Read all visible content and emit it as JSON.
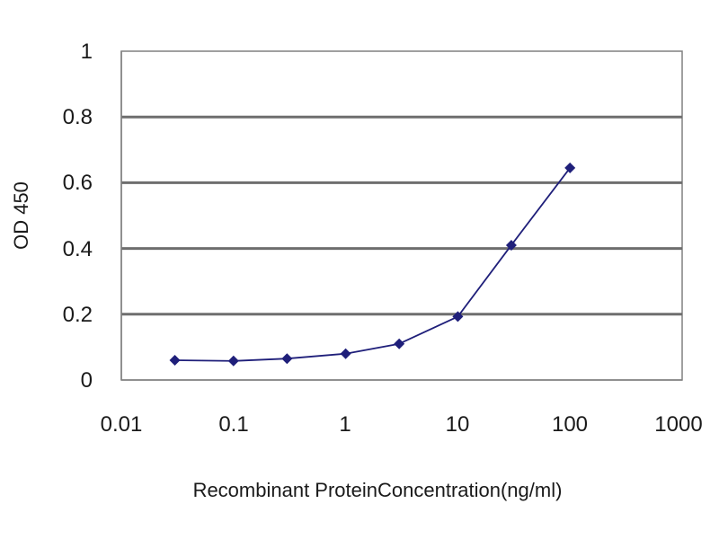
{
  "chart_data": {
    "type": "line",
    "title": "",
    "xlabel": "Recombinant ProteinConcentration(ng/ml)",
    "ylabel": "OD 450",
    "x_scale": "log",
    "xlim": [
      0.01,
      1000
    ],
    "ylim": [
      0,
      1
    ],
    "x_ticks": [
      "0.01",
      "0.1",
      "1",
      "10",
      "100",
      "1000"
    ],
    "y_ticks": [
      "0",
      "0.2",
      "0.4",
      "0.6",
      "0.8",
      "1"
    ],
    "grid": "horizontal",
    "legend": "none",
    "series": [
      {
        "color": "#1f1f7a",
        "marker": "diamond",
        "x": [
          0.03,
          0.1,
          0.3,
          1,
          3,
          10,
          30,
          100
        ],
        "y": [
          0.06,
          0.058,
          0.065,
          0.08,
          0.11,
          0.193,
          0.41,
          0.645
        ]
      }
    ]
  }
}
